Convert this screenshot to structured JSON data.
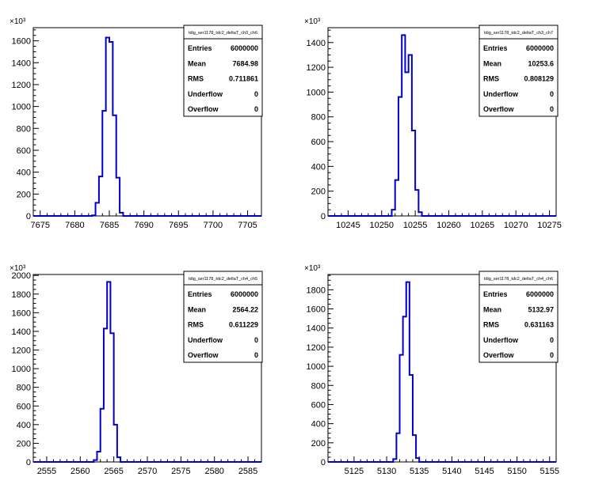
{
  "chart_data": [
    {
      "type": "bar",
      "title": "",
      "xlabel": "",
      "ylabel": "",
      "multiplier": "×10³",
      "xlim": [
        7674,
        7707
      ],
      "ylim": [
        0,
        1720
      ],
      "xticks": [
        7675,
        7680,
        7685,
        7690,
        7695,
        7700,
        7705
      ],
      "yticks": [
        0,
        200,
        400,
        600,
        800,
        1000,
        1200,
        1400,
        1600
      ],
      "bin_width": 0.5,
      "x": [
        7682.5,
        7683.0,
        7683.5,
        7684.0,
        7684.5,
        7685.0,
        7685.5,
        7686.0,
        7686.5
      ],
      "values": [
        5,
        120,
        360,
        960,
        1630,
        1590,
        920,
        350,
        30
      ],
      "stats": {
        "name": "tdig_ser1178_tdc2_deltaT_ch3_ch6",
        "rows": [
          {
            "label": "Entries",
            "value": "6000000"
          },
          {
            "label": "Mean",
            "value": "7684.98"
          },
          {
            "label": "RMS",
            "value": "0.711861"
          },
          {
            "label": "Underflow",
            "value": "0"
          },
          {
            "label": "Overflow",
            "value": "0"
          }
        ]
      },
      "line_color": "#0000cc"
    },
    {
      "type": "bar",
      "title": "",
      "xlabel": "",
      "ylabel": "",
      "multiplier": "×10³",
      "xlim": [
        10242,
        10276
      ],
      "ylim": [
        0,
        1520
      ],
      "xticks": [
        10245,
        10250,
        10255,
        10260,
        10265,
        10270,
        10275
      ],
      "yticks": [
        0,
        200,
        400,
        600,
        800,
        1000,
        1200,
        1400
      ],
      "bin_width": 0.5,
      "x": [
        10251.5,
        10252.0,
        10252.5,
        10253.0,
        10253.5,
        10254.0,
        10254.5,
        10255.0,
        10255.5
      ],
      "values": [
        50,
        290,
        960,
        1460,
        1160,
        1300,
        690,
        210,
        30
      ],
      "stats": {
        "name": "tdig_ser1178_tdc2_deltaT_ch3_ch7",
        "rows": [
          {
            "label": "Entries",
            "value": "6000000"
          },
          {
            "label": "Mean",
            "value": "10253.6"
          },
          {
            "label": "RMS",
            "value": "0.808129"
          },
          {
            "label": "Underflow",
            "value": "0"
          },
          {
            "label": "Overflow",
            "value": "0"
          }
        ]
      },
      "line_color": "#0000cc"
    },
    {
      "type": "bar",
      "title": "",
      "xlabel": "",
      "ylabel": "",
      "multiplier": "×10³",
      "xlim": [
        2553,
        2587
      ],
      "ylim": [
        0,
        2010
      ],
      "xticks": [
        2555,
        2560,
        2565,
        2570,
        2575,
        2580,
        2585
      ],
      "yticks": [
        0,
        200,
        400,
        600,
        800,
        1000,
        1200,
        1400,
        1600,
        1800,
        2000
      ],
      "bin_width": 0.5,
      "x": [
        2562.0,
        2562.5,
        2563.0,
        2563.5,
        2564.0,
        2564.5,
        2565.0,
        2565.5
      ],
      "values": [
        20,
        110,
        570,
        1430,
        1930,
        1380,
        400,
        50
      ],
      "stats": {
        "name": "tdig_ser1178_tdc2_deltaT_ch4_ch5",
        "rows": [
          {
            "label": "Entries",
            "value": "6000000"
          },
          {
            "label": "Mean",
            "value": "2564.22"
          },
          {
            "label": "RMS",
            "value": "0.611229"
          },
          {
            "label": "Underflow",
            "value": "0"
          },
          {
            "label": "Overflow",
            "value": "0"
          }
        ]
      },
      "line_color": "#0000cc"
    },
    {
      "type": "bar",
      "title": "",
      "xlabel": "",
      "ylabel": "",
      "multiplier": "×10³",
      "xlim": [
        5121,
        5156
      ],
      "ylim": [
        0,
        1960
      ],
      "xticks": [
        5125,
        5130,
        5135,
        5140,
        5145,
        5150,
        5155
      ],
      "yticks": [
        0,
        200,
        400,
        600,
        800,
        1000,
        1200,
        1400,
        1600,
        1800
      ],
      "bin_width": 0.5,
      "x": [
        5131.0,
        5131.5,
        5132.0,
        5132.5,
        5133.0,
        5133.5,
        5134.0,
        5134.5
      ],
      "values": [
        30,
        300,
        1120,
        1520,
        1880,
        910,
        280,
        40
      ],
      "stats": {
        "name": "tdig_ser1178_tdc2_deltaT_ch4_ch6",
        "rows": [
          {
            "label": "Entries",
            "value": "6000000"
          },
          {
            "label": "Mean",
            "value": "5132.97"
          },
          {
            "label": "RMS",
            "value": "0.631163"
          },
          {
            "label": "Underflow",
            "value": "0"
          },
          {
            "label": "Overflow",
            "value": "0"
          }
        ]
      },
      "line_color": "#0000cc"
    }
  ]
}
